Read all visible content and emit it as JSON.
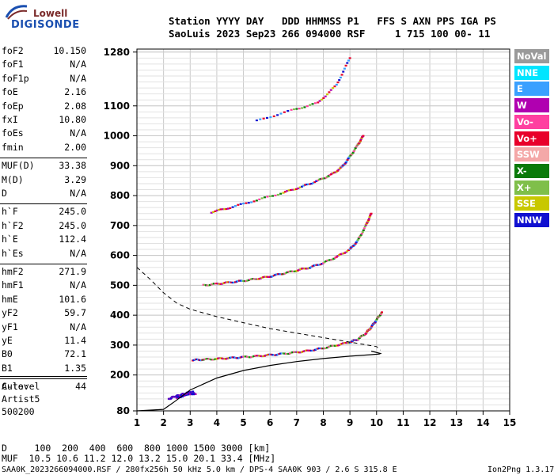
{
  "logo": {
    "top": "Lowell",
    "bottom": "DIGISONDE"
  },
  "header": {
    "line1": "Station YYYY DAY   DDD HHMMSS P1   FFS S AXN PPS IGA PS",
    "line2": "SaoLuis 2023 Sep23 266 094000 RSF     1 715 100 00- 11"
  },
  "params": [
    {
      "k": "foF2",
      "v": "10.150"
    },
    {
      "k": "foF1",
      "v": "N/A"
    },
    {
      "k": "foF1p",
      "v": "N/A"
    },
    {
      "k": "foE",
      "v": "2.16"
    },
    {
      "k": "foEp",
      "v": "2.08"
    },
    {
      "k": "fxI",
      "v": "10.80"
    },
    {
      "k": "foEs",
      "v": "N/A"
    },
    {
      "k": "fmin",
      "v": "2.00"
    },
    {
      "k": "MUF(D)",
      "v": "33.38"
    },
    {
      "k": "M(D)",
      "v": "3.29"
    },
    {
      "k": "D",
      "v": "N/A"
    },
    {
      "k": "h`F",
      "v": "245.0"
    },
    {
      "k": "h`F2",
      "v": "245.0"
    },
    {
      "k": "h`E",
      "v": "112.4"
    },
    {
      "k": "h`Es",
      "v": "N/A"
    },
    {
      "k": "hmF2",
      "v": "271.9"
    },
    {
      "k": "hmF1",
      "v": "N/A"
    },
    {
      "k": "hmE",
      "v": "101.6"
    },
    {
      "k": "yF2",
      "v": "59.7"
    },
    {
      "k": "yF1",
      "v": "N/A"
    },
    {
      "k": "yE",
      "v": "11.4"
    },
    {
      "k": "B0",
      "v": "72.1"
    },
    {
      "k": "B1",
      "v": "1.35"
    },
    {
      "k": "C-level",
      "v": "44"
    }
  ],
  "autoscale": {
    "line1": "Auto:",
    "line2": "Artist5",
    "line3": "500200"
  },
  "legend": [
    {
      "label": "NoVal",
      "color": "#9a9a9a"
    },
    {
      "label": "NNE",
      "color": "#00e5ff"
    },
    {
      "label": "E",
      "color": "#3aa0ff"
    },
    {
      "label": "W",
      "color": "#b000b0"
    },
    {
      "label": "Vo-",
      "color": "#ff3fa0"
    },
    {
      "label": "Vo+",
      "color": "#e8002a"
    },
    {
      "label": "SSW",
      "color": "#f4a8a8"
    },
    {
      "label": "X-",
      "color": "#0a7a0a"
    },
    {
      "label": "X+",
      "color": "#7fbf4a"
    },
    {
      "label": "SSE",
      "color": "#c8c800"
    },
    {
      "label": "NNW",
      "color": "#1010d0"
    }
  ],
  "bottom": {
    "d_line": "D     100  200  400  600  800 1000 1500 3000 [km]",
    "muf_line": "MUF  10.5 10.6 11.2 12.0 13.2 15.0 20.1 33.4 [MHz]"
  },
  "footer": {
    "left": "SAA0K_2023266094000.RSF / 280fx256h 50 kHz 5.0 km / DPS-4 SAA0K 903 / 2.6 S 315.8 E",
    "right": "Ion2Png 1.3.17"
  },
  "chart_data": {
    "type": "scatter",
    "xlabel": "",
    "ylabel": "",
    "xlim": [
      1,
      15
    ],
    "ylim": [
      80,
      1290
    ],
    "x_ticks": [
      1,
      2,
      3,
      4,
      5,
      6,
      7,
      8,
      9,
      10,
      11,
      12,
      13,
      14,
      15
    ],
    "y_ticks": [
      80,
      200,
      300,
      400,
      500,
      600,
      700,
      800,
      900,
      1000,
      1100,
      1280
    ],
    "y_tick_labels": [
      "80",
      "200",
      "300",
      "400",
      "500",
      "600",
      "700",
      "800",
      "900",
      "1000",
      "1100",
      "1280"
    ],
    "grid": true,
    "series": [
      {
        "name": "",
        "trace": "E-layer echoes",
        "color": "#1010d0",
        "points": [
          [
            2.2,
            120
          ],
          [
            2.4,
            128
          ],
          [
            2.6,
            132
          ],
          [
            2.8,
            138
          ],
          [
            3.0,
            142
          ],
          [
            3.2,
            138
          ],
          [
            2.5,
            125
          ],
          [
            2.9,
            140
          ],
          [
            3.1,
            145
          ]
        ]
      },
      {
        "name": "",
        "trace": "F trace 1-hop",
        "color": "#e8002a",
        "points": [
          [
            3.1,
            250
          ],
          [
            3.5,
            252
          ],
          [
            4,
            254
          ],
          [
            4.5,
            257
          ],
          [
            5,
            260
          ],
          [
            5.5,
            263
          ],
          [
            6,
            267
          ],
          [
            6.5,
            271
          ],
          [
            7,
            276
          ],
          [
            7.5,
            282
          ],
          [
            8,
            290
          ],
          [
            8.5,
            300
          ],
          [
            9,
            310
          ],
          [
            9.3,
            320
          ],
          [
            9.6,
            340
          ],
          [
            9.8,
            360
          ],
          [
            10.0,
            385
          ],
          [
            10.2,
            410
          ]
        ]
      },
      {
        "name": "",
        "trace": "F trace 2-hop",
        "color": "#e8002a",
        "points": [
          [
            3.5,
            500
          ],
          [
            4,
            505
          ],
          [
            4.5,
            510
          ],
          [
            5,
            515
          ],
          [
            5.5,
            522
          ],
          [
            6,
            530
          ],
          [
            6.5,
            540
          ],
          [
            7,
            550
          ],
          [
            7.5,
            560
          ],
          [
            8,
            575
          ],
          [
            8.5,
            595
          ],
          [
            9,
            620
          ],
          [
            9.3,
            650
          ],
          [
            9.6,
            700
          ],
          [
            9.8,
            740
          ]
        ]
      },
      {
        "name": "",
        "trace": "F trace 3-hop",
        "color": "#e8002a",
        "points": [
          [
            3.8,
            745
          ],
          [
            4.5,
            760
          ],
          [
            5.5,
            785
          ],
          [
            6.5,
            810
          ],
          [
            7.2,
            830
          ],
          [
            7.8,
            850
          ],
          [
            8.3,
            870
          ],
          [
            8.7,
            895
          ],
          [
            9.0,
            930
          ],
          [
            9.3,
            970
          ],
          [
            9.5,
            1000
          ]
        ]
      },
      {
        "name": "",
        "trace": "F trace 4-hop",
        "color": "#e8002a",
        "points": [
          [
            5.5,
            1050
          ],
          [
            6.8,
            1085
          ],
          [
            7.8,
            1110
          ],
          [
            8.5,
            1170
          ],
          [
            9.0,
            1260
          ]
        ]
      }
    ],
    "profile_solid": [
      [
        1.0,
        80
      ],
      [
        2.0,
        85
      ],
      [
        2.4,
        110
      ],
      [
        3,
        150
      ],
      [
        4,
        190
      ],
      [
        5,
        215
      ],
      [
        6,
        232
      ],
      [
        7,
        245
      ],
      [
        8,
        255
      ],
      [
        9,
        263
      ],
      [
        9.8,
        268
      ],
      [
        10.1,
        270
      ],
      [
        10.15,
        272
      ],
      [
        9.8,
        280
      ]
    ],
    "profile_dashed": [
      [
        1.0,
        560
      ],
      [
        1.5,
        520
      ],
      [
        2,
        475
      ],
      [
        2.5,
        440
      ],
      [
        3,
        420
      ],
      [
        4,
        395
      ],
      [
        5,
        375
      ],
      [
        6,
        355
      ],
      [
        7,
        340
      ],
      [
        8,
        325
      ],
      [
        9,
        310
      ],
      [
        10,
        295
      ],
      [
        10.15,
        283
      ]
    ]
  }
}
